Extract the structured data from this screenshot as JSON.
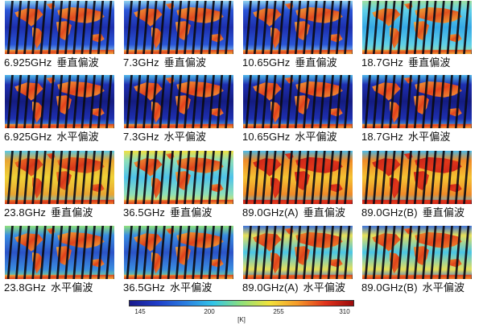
{
  "panels": [
    {
      "freq": "6.925GHz",
      "pol": "垂直偏波",
      "map_palette": "cold-ocean-warm-land"
    },
    {
      "freq": "7.3GHz",
      "pol": "垂直偏波",
      "map_palette": "cold-ocean-warm-land"
    },
    {
      "freq": "10.65GHz",
      "pol": "垂直偏波",
      "map_palette": "cold-ocean-warm-land"
    },
    {
      "freq": "18.7GHz",
      "pol": "垂直偏波",
      "map_palette": "cyan-ocean-warm-land"
    },
    {
      "freq": "6.925GHz",
      "pol": "水平偏波",
      "map_palette": "deep-blue-ocean"
    },
    {
      "freq": "7.3GHz",
      "pol": "水平偏波",
      "map_palette": "deep-blue-ocean"
    },
    {
      "freq": "10.65GHz",
      "pol": "水平偏波",
      "map_palette": "deep-blue-ocean"
    },
    {
      "freq": "18.7GHz",
      "pol": "水平偏波",
      "map_palette": "deep-blue-ocean"
    },
    {
      "freq": "23.8GHz",
      "pol": "垂直偏波",
      "map_palette": "yellow-ocean"
    },
    {
      "freq": "36.5GHz",
      "pol": "垂直偏波",
      "map_palette": "cyan-ocean"
    },
    {
      "freq": "89.0GHz(A)",
      "pol": "垂直偏波",
      "map_palette": "warm-ocean"
    },
    {
      "freq": "89.0GHz(B)",
      "pol": "垂直偏波",
      "map_palette": "warm-ocean"
    },
    {
      "freq": "23.8GHz",
      "pol": "水平偏波",
      "map_palette": "mixed-blue-ocean"
    },
    {
      "freq": "36.5GHz",
      "pol": "水平偏波",
      "map_palette": "mixed-blue-ocean"
    },
    {
      "freq": "89.0GHz(A)",
      "pol": "水平偏波",
      "map_palette": "cyan-yellow-ocean"
    },
    {
      "freq": "89.0GHz(B)",
      "pol": "水平偏波",
      "map_palette": "cyan-yellow-ocean"
    }
  ],
  "colorbar": {
    "ticks": [
      "145",
      "200",
      "255",
      "310"
    ],
    "unit": "[K]",
    "min": 145,
    "max": 310,
    "colors": [
      "#1a1a8c",
      "#1f3dc8",
      "#2a7de0",
      "#33c6e8",
      "#8ee07a",
      "#f2e23a",
      "#f59a2a",
      "#e0331c",
      "#9c0a0a"
    ]
  }
}
